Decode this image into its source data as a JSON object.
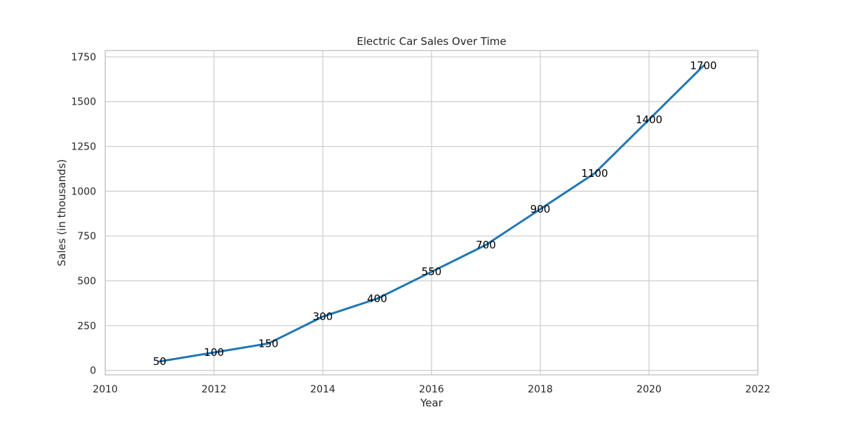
{
  "chart_data": {
    "type": "line",
    "title": "Electric Car Sales Over Time",
    "xlabel": "Year",
    "ylabel": "Sales (in thousands)",
    "xlim": [
      2010,
      2022
    ],
    "ylim": [
      -25,
      1785
    ],
    "x_ticks": [
      2010,
      2012,
      2014,
      2016,
      2018,
      2020,
      2022
    ],
    "y_ticks": [
      0,
      250,
      500,
      750,
      1000,
      1250,
      1500,
      1750
    ],
    "grid": true,
    "legend": "none",
    "series": [
      {
        "color": "#1f77b4",
        "x": [
          2011,
          2012,
          2013,
          2014,
          2015,
          2016,
          2017,
          2018,
          2019,
          2020,
          2021
        ],
        "values": [
          50,
          100,
          150,
          300,
          400,
          550,
          700,
          900,
          1100,
          1400,
          1700
        ]
      }
    ]
  }
}
